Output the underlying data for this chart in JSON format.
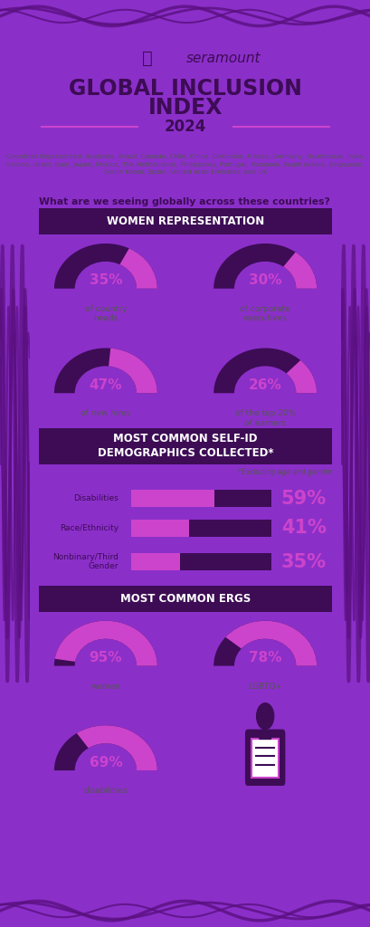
{
  "title": "GLOBAL INCLUSION\nINDEX",
  "year": "2024",
  "countries_text": "Countries Represented: Australia, Brazil, Canada, Chile, China, Colombia, France, Germany, Guatemala, India, Ireland, Israel, Italy, Japan, Mexico, The Netherlands, Philippines, Portugal, Romania, Saudi Arabia, Singapore, South Korea, Spain, United Arab Emirates, and UK",
  "question": "What are we seeing globally across these countries?",
  "women_rep_title": "WOMEN REPRESENTATION",
  "women_stats": [
    {
      "pct": 35,
      "label": "of country\nheads"
    },
    {
      "pct": 30,
      "label": "of corporate\nexecutives"
    },
    {
      "pct": 47,
      "label": "of new hires"
    },
    {
      "pct": 26,
      "label": "of the top 20%\nof earners"
    }
  ],
  "self_id_title": "MOST COMMON SELF-ID\nDEMOGRAPHICS COLLECTED*",
  "self_id_note": "*Excluding age and gender",
  "self_id_data": [
    {
      "label": "Disabilities",
      "pct": 59
    },
    {
      "label": "Race/Ethnicity",
      "pct": 41
    },
    {
      "label": "Nonbinary/Third\nGender",
      "pct": 35
    }
  ],
  "ergs_title": "MOST COMMON ERGS",
  "ergs_stats": [
    {
      "pct": 95,
      "label": "women"
    },
    {
      "pct": 78,
      "label": "LGBTQ+"
    },
    {
      "pct": 69,
      "label": "disabilities"
    }
  ],
  "colors": {
    "bg_outer": "#8B2FC9",
    "bg_white": "#FFFFFF",
    "dark_purple": "#3D0C55",
    "pink_purple": "#CC44CC",
    "header_bg": "#3D0C55",
    "bar_pink": "#CC44CC",
    "bar_dark": "#3D0C55",
    "pct_pink": "#CC44CC",
    "donut_pink": "#CC44CC",
    "donut_dark": "#3D0C55",
    "text_dark": "#3D0C55",
    "text_gray": "#555555",
    "wave_dark": "#5A1080"
  }
}
